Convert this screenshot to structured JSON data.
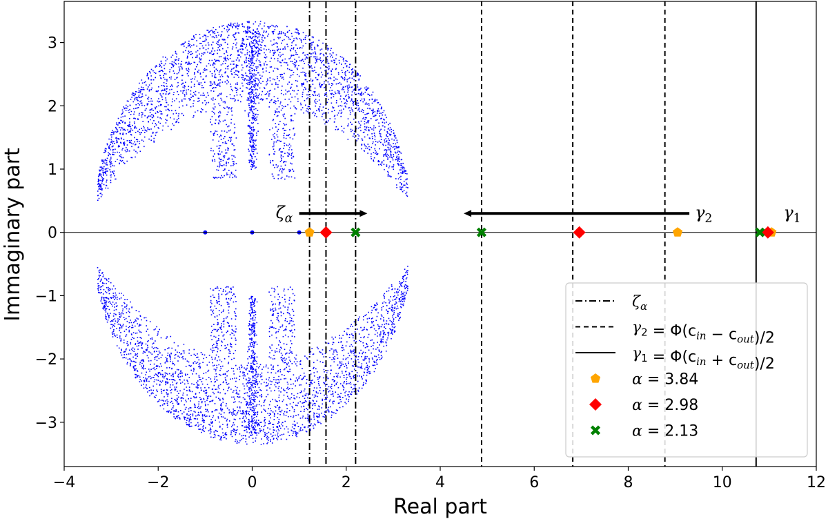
{
  "chart_data": {
    "type": "scatter",
    "xlabel": "Real part",
    "ylabel": "Immaginary part",
    "xlim": [
      -4,
      12
    ],
    "ylim": [
      -3.7,
      3.65
    ],
    "x_ticks": [
      -4,
      -2,
      0,
      2,
      4,
      6,
      8,
      10,
      12
    ],
    "y_ticks": [
      -3,
      -2,
      -1,
      0,
      1,
      2,
      3
    ],
    "x_tick_labels": [
      "−4",
      "−2",
      "0",
      "2",
      "4",
      "6",
      "8",
      "10",
      "12"
    ],
    "y_tick_labels": [
      "−3",
      "−2",
      "−1",
      "0",
      "1",
      "2",
      "3"
    ],
    "grid": false,
    "eigenvalue_cloud": {
      "color": "#0000ff",
      "upper_lobe": {
        "real_range": [
          -3.3,
          3.3
        ],
        "imag_range": [
          0.42,
          3.35
        ]
      },
      "lower_lobe": {
        "real_range": [
          -3.3,
          3.3
        ],
        "imag_range": [
          -3.35,
          -0.42
        ]
      },
      "axis_points_real": [
        -1.0,
        0.0,
        1.0
      ]
    },
    "vertical_lines": [
      {
        "x": 1.22,
        "style": "dashdot",
        "series": "zeta_alpha"
      },
      {
        "x": 1.57,
        "style": "dashdot",
        "series": "zeta_alpha"
      },
      {
        "x": 2.2,
        "style": "dashdot",
        "series": "zeta_alpha"
      },
      {
        "x": 4.88,
        "style": "dashed",
        "series": "gamma_2"
      },
      {
        "x": 6.82,
        "style": "dashed",
        "series": "gamma_2"
      },
      {
        "x": 8.78,
        "style": "dashed",
        "series": "gamma_2"
      },
      {
        "x": 10.72,
        "style": "solid",
        "series": "gamma_1"
      }
    ],
    "arrows": [
      {
        "from_x": 1.0,
        "to_x": 2.45,
        "y": 0.3,
        "label": "ζ",
        "label_sub": "α"
      },
      {
        "from_x": 9.3,
        "to_x": 4.5,
        "y": 0.3,
        "label": "γ",
        "label_sub": "2"
      }
    ],
    "gamma1_label": {
      "text": "γ",
      "sub": "1"
    },
    "series": [
      {
        "name_text": "α = 3.84",
        "marker": "pentagon",
        "color": "#ffa500",
        "x": [
          1.22,
          9.05,
          11.05
        ],
        "y": [
          0,
          0,
          0
        ]
      },
      {
        "name_text": "α = 2.98",
        "marker": "diamond",
        "color": "#ff0000",
        "x": [
          1.57,
          6.96,
          10.97
        ],
        "y": [
          0,
          0,
          0
        ]
      },
      {
        "name_text": "α = 2.13",
        "marker": "x",
        "color": "#008000",
        "x": [
          2.2,
          4.88,
          10.8
        ],
        "y": [
          0,
          0,
          0
        ]
      }
    ],
    "legend": {
      "placement": "lower-right",
      "entries": [
        {
          "kind": "line",
          "style": "dashdot",
          "label_main": "ζ",
          "label_sub": "α",
          "label_rest": ""
        },
        {
          "kind": "line",
          "style": "dashed",
          "label_main": "γ",
          "label_sub": "2",
          "label_rest": " = Φ(c",
          "label_sub2": "in",
          "label_mid": " − c",
          "label_sub3": "out",
          "label_end": ")/2"
        },
        {
          "kind": "line",
          "style": "solid",
          "label_main": "γ",
          "label_sub": "1",
          "label_rest": " = Φ(c",
          "label_sub2": "in",
          "label_mid": " + c",
          "label_sub3": "out",
          "label_end": ")/2"
        },
        {
          "kind": "marker",
          "marker": "pentagon",
          "color": "#ffa500",
          "label_main": "α",
          "label_rest": " = 3.84"
        },
        {
          "kind": "marker",
          "marker": "diamond",
          "color": "#ff0000",
          "label_main": "α",
          "label_rest": " = 2.98"
        },
        {
          "kind": "marker",
          "marker": "x",
          "color": "#008000",
          "label_main": "α",
          "label_rest": " = 2.13"
        }
      ]
    }
  }
}
